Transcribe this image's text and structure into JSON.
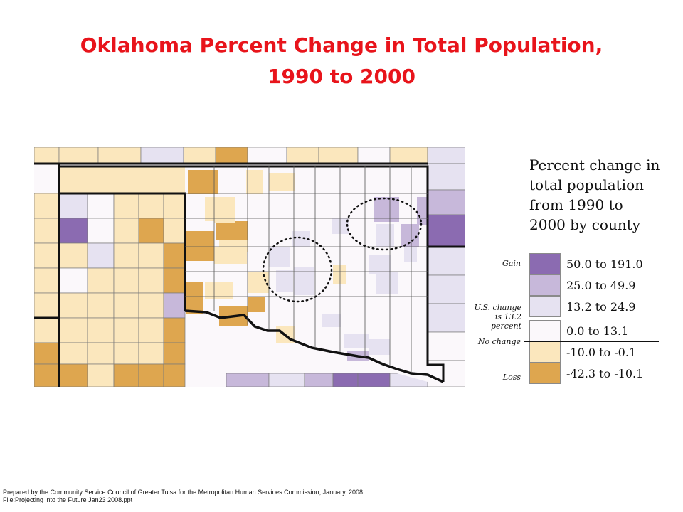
{
  "title": {
    "line1": "Oklahoma Percent Change in Total Population,",
    "line2": "1990 to 2000"
  },
  "legend": {
    "heading": [
      "Percent change in",
      "total population",
      "from 1990 to",
      "2000 by county"
    ],
    "classes": [
      {
        "range": "50.0 to 191.0",
        "color": "#8b6bb1"
      },
      {
        "range": "25.0 to 49.9",
        "color": "#c7b8da"
      },
      {
        "range": "13.2 to 24.9",
        "color": "#e6e2f1"
      },
      {
        "range": "0.0 to 13.1",
        "color": "#fbf8fb"
      },
      {
        "range": "-10.0 to -0.1",
        "color": "#fbe7bd"
      },
      {
        "range": "-42.3 to -10.1",
        "color": "#dea64f"
      }
    ],
    "gain_label": "Gain",
    "us_change_label": "U.S. change is 13.2 percent",
    "no_change_label": "No change",
    "loss_label": "Loss"
  },
  "footer": {
    "line1": "Prepared by the Community Service Council of Greater Tulsa for the Metropolitan Human Services Commission, January, 2008",
    "line2": "File:Projecting into the Future Jan23 2008.ppt"
  }
}
